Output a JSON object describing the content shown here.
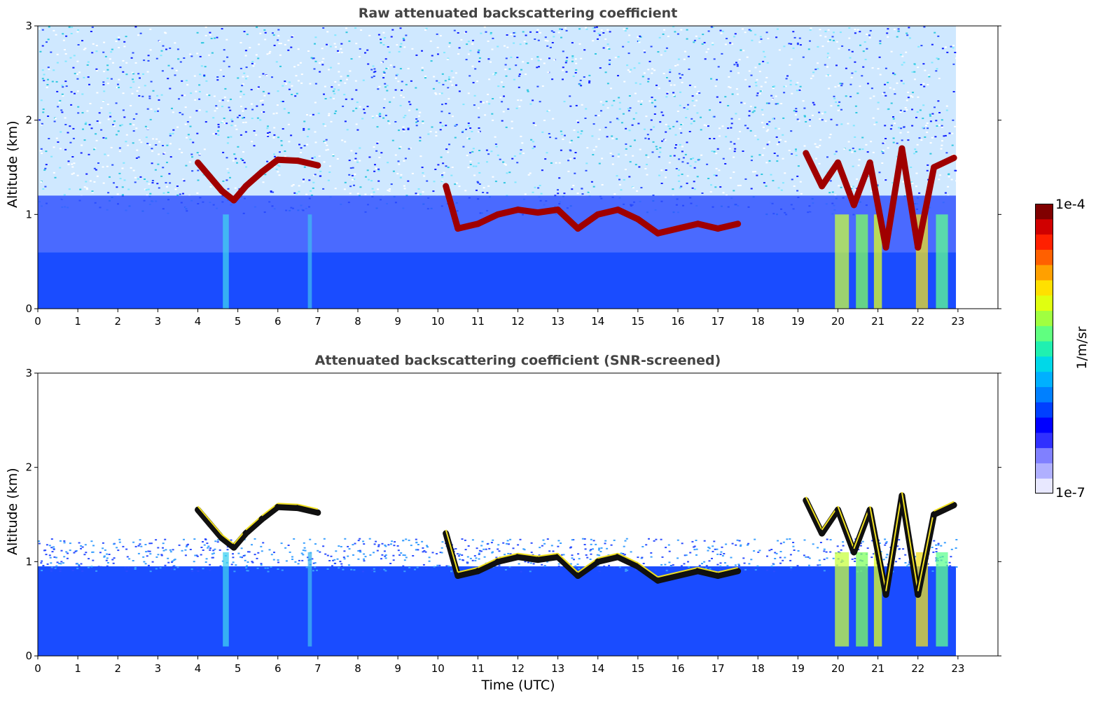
{
  "chart_data": [
    {
      "type": "heatmap",
      "title": "Raw attenuated backscattering coefficient",
      "xlabel": "",
      "ylabel": "Altitude (km)",
      "xlim": [
        0,
        24
      ],
      "ylim": [
        0,
        3
      ],
      "x_ticks": [
        "0",
        "1",
        "2",
        "3",
        "4",
        "5",
        "6",
        "7",
        "8",
        "9",
        "10",
        "11",
        "12",
        "13",
        "14",
        "15",
        "16",
        "17",
        "18",
        "19",
        "20",
        "21",
        "22",
        "23"
      ],
      "y_ticks": [
        "0",
        "1",
        "2",
        "3"
      ],
      "data_end_hour": 22.95,
      "cloud_layer": [
        {
          "t": 4.0,
          "h": 1.55
        },
        {
          "t": 4.3,
          "h": 1.4
        },
        {
          "t": 4.6,
          "h": 1.25
        },
        {
          "t": 4.9,
          "h": 1.15
        },
        {
          "t": 5.2,
          "h": 1.3
        },
        {
          "t": 5.6,
          "h": 1.45
        },
        {
          "t": 6.0,
          "h": 1.58
        },
        {
          "t": 6.5,
          "h": 1.57
        },
        {
          "t": 7.0,
          "h": 1.52
        },
        {
          "t": 10.2,
          "h": 1.3
        },
        {
          "t": 10.5,
          "h": 0.85
        },
        {
          "t": 11.0,
          "h": 0.9
        },
        {
          "t": 11.5,
          "h": 1.0
        },
        {
          "t": 12.0,
          "h": 1.05
        },
        {
          "t": 12.5,
          "h": 1.02
        },
        {
          "t": 13.0,
          "h": 1.05
        },
        {
          "t": 13.5,
          "h": 0.85
        },
        {
          "t": 14.0,
          "h": 1.0
        },
        {
          "t": 14.5,
          "h": 1.05
        },
        {
          "t": 15.0,
          "h": 0.95
        },
        {
          "t": 15.5,
          "h": 0.8
        },
        {
          "t": 16.5,
          "h": 0.9
        },
        {
          "t": 17.0,
          "h": 0.85
        },
        {
          "t": 17.5,
          "h": 0.9
        },
        {
          "t": 19.2,
          "h": 1.65
        },
        {
          "t": 19.6,
          "h": 1.3
        },
        {
          "t": 20.0,
          "h": 1.55
        },
        {
          "t": 20.4,
          "h": 1.1
        },
        {
          "t": 20.8,
          "h": 1.55
        },
        {
          "t": 21.2,
          "h": 0.65
        },
        {
          "t": 21.6,
          "h": 1.7
        },
        {
          "t": 22.0,
          "h": 0.65
        },
        {
          "t": 22.4,
          "h": 1.5
        },
        {
          "t": 22.9,
          "h": 1.6
        }
      ]
    },
    {
      "type": "heatmap",
      "title": "Attenuated backscattering coefficient (SNR-screened)",
      "xlabel": "Time (UTC)",
      "ylabel": "Altitude (km)",
      "xlim": [
        0,
        24
      ],
      "ylim": [
        0,
        3
      ],
      "x_ticks": [
        "0",
        "1",
        "2",
        "3",
        "4",
        "5",
        "6",
        "7",
        "8",
        "9",
        "10",
        "11",
        "12",
        "13",
        "14",
        "15",
        "16",
        "17",
        "18",
        "19",
        "20",
        "21",
        "22",
        "23"
      ],
      "y_ticks": [
        "0",
        "1",
        "2",
        "3"
      ],
      "data_end_hour": 22.95,
      "boundary_layer_top_km": 0.95
    }
  ],
  "colorbar": {
    "max_label": "1e-4",
    "min_label": "1e-7",
    "unit": "1/m/sr",
    "colors": [
      "#e8e8ff",
      "#b0b0ff",
      "#8080ff",
      "#3030ff",
      "#0000ff",
      "#0040ff",
      "#0080ff",
      "#00b0ff",
      "#00d8e8",
      "#20f0b0",
      "#60ff80",
      "#a0ff40",
      "#e0ff10",
      "#ffe000",
      "#ffa000",
      "#ff6000",
      "#ff2000",
      "#d00000",
      "#800000"
    ]
  }
}
